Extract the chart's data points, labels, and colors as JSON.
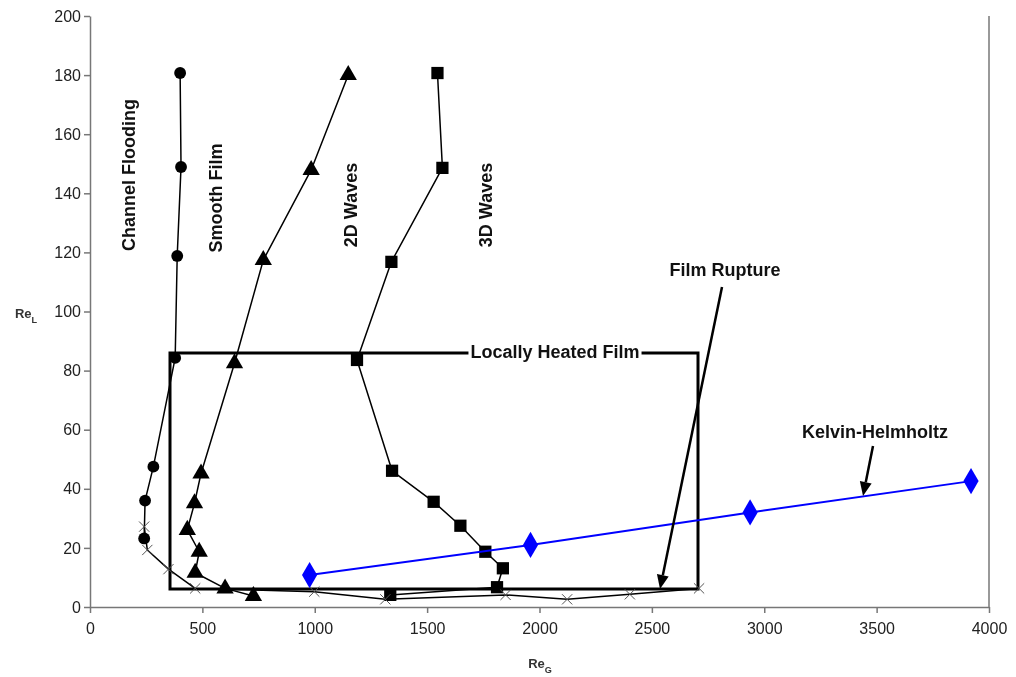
{
  "chart_data": {
    "type": "line",
    "xlabel": "Re$_{G}$",
    "ylabel": "Re$_{L}$",
    "xlim": [
      0,
      4000
    ],
    "xticks": [
      0,
      500,
      1000,
      1500,
      2000,
      2500,
      3000,
      3500,
      4000
    ],
    "ylim": [
      0,
      200
    ],
    "yticks": [
      0,
      20,
      40,
      60,
      80,
      100,
      120,
      140,
      160,
      180,
      200
    ],
    "grid": false,
    "legend": false,
    "series": [
      {
        "color": "#000000",
        "marker": "circle",
        "x": [
          401,
          405,
          388,
          379,
          282,
          245,
          241
        ],
        "values": [
          180.7,
          148.9,
          118.8,
          84.3,
          47.5,
          36,
          23.2
        ]
      },
      {
        "color": "#000000",
        "marker": "triangle",
        "x": [
          1149,
          984,
          771,
          643,
          494,
          465,
          433,
          486,
          468,
          601,
          727
        ],
        "values": [
          180,
          147.9,
          117.4,
          82.5,
          45.2,
          35.1,
          26.1,
          18.7,
          11.6,
          6.3,
          3.7
        ]
      },
      {
        "color": "#000000",
        "marker": "square",
        "x": [
          1546,
          1568,
          1341,
          1188,
          1344,
          1529,
          1648,
          1759,
          1837,
          1811,
          1336
        ],
        "values": [
          180.7,
          148.6,
          116.8,
          83.6,
          46.1,
          35.6,
          27.5,
          18.7,
          13.1,
          6.7,
          4.1
        ]
      },
      {
        "color": "#000000",
        "marker": "cross",
        "x": [
          241,
          255,
          349,
          468,
          998,
          1314,
          1849,
          2123,
          2402,
          2710
        ],
        "values": [
          27.2,
          19.3,
          12.8,
          6.3,
          5.2,
          2.6,
          4.1,
          2.6,
          4.3,
          6.3
        ]
      },
      {
        "name": "Kelvin-Helmholtz",
        "color": "#0000ff",
        "marker": "diamond",
        "x": [
          977,
          1960,
          2937,
          3920
        ],
        "values": [
          10.8,
          21,
          32,
          42.6
        ]
      }
    ],
    "annotations": [
      "Channel Flooding",
      "Smooth Film",
      "2D Waves",
      "3D Waves",
      "Locally Heated Film",
      "Film Rupture"
    ]
  }
}
